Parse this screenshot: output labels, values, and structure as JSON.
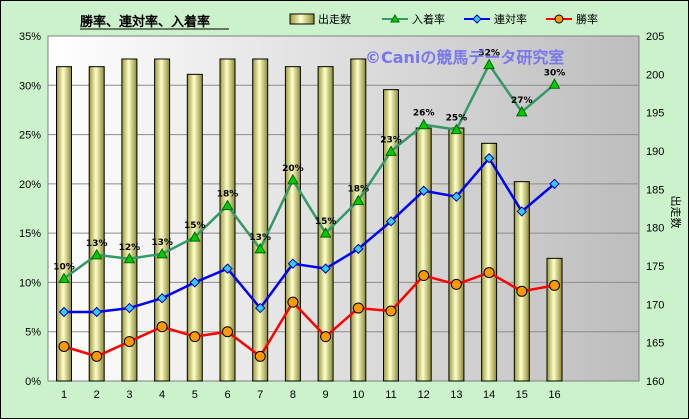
{
  "chart_data": {
    "type": "bar+line",
    "title": "勝率、連対率、入着率",
    "watermark": "©Caniの競馬データ研究室",
    "categories": [
      "1",
      "2",
      "3",
      "4",
      "5",
      "6",
      "7",
      "8",
      "9",
      "10",
      "11",
      "12",
      "13",
      "14",
      "15",
      "16"
    ],
    "y_left": {
      "ticks": [
        "0%",
        "5%",
        "10%",
        "15%",
        "20%",
        "25%",
        "30%",
        "35%"
      ],
      "ylim": [
        0,
        35
      ],
      "unit": "%"
    },
    "y_right": {
      "label": "出走数",
      "ticks": [
        "160",
        "165",
        "170",
        "175",
        "180",
        "185",
        "190",
        "195",
        "200",
        "205"
      ],
      "ylim": [
        160,
        205
      ]
    },
    "bars": {
      "name": "出走数",
      "axis": "right",
      "color": "#ffff99",
      "values": [
        201,
        201,
        202,
        202,
        200,
        202,
        202,
        201,
        201,
        202,
        198,
        193,
        193,
        191,
        186,
        176
      ]
    },
    "series": [
      {
        "name": "入着率",
        "axis": "left",
        "color": "#339966",
        "marker": "triangle",
        "marker_color": "#00cc00",
        "values": [
          10.4,
          12.8,
          12.4,
          12.9,
          14.6,
          17.8,
          13.4,
          20.4,
          15.0,
          18.3,
          23.3,
          26.0,
          25.5,
          32.1,
          27.3,
          30.1
        ],
        "labels": [
          "10%",
          "13%",
          "12%",
          "13%",
          "15%",
          "18%",
          "13%",
          "20%",
          "15%",
          "18%",
          "23%",
          "26%",
          "25%",
          "32%",
          "27%",
          "30%"
        ]
      },
      {
        "name": "連対率",
        "axis": "left",
        "color": "#0000ff",
        "marker": "diamond",
        "marker_color": "#33ccff",
        "values": [
          7.0,
          7.0,
          7.4,
          8.4,
          10.0,
          11.4,
          7.4,
          11.9,
          11.4,
          13.4,
          16.2,
          19.3,
          18.7,
          22.6,
          17.2,
          20.0
        ]
      },
      {
        "name": "勝率",
        "axis": "left",
        "color": "#ff0000",
        "marker": "circle",
        "marker_color": "#ff9900",
        "values": [
          3.5,
          2.5,
          4.0,
          5.5,
          4.5,
          5.0,
          2.5,
          8.0,
          4.5,
          7.4,
          7.1,
          10.7,
          9.8,
          11.0,
          9.1,
          9.7
        ]
      }
    ],
    "grid": true,
    "legend_position": "top-right"
  }
}
